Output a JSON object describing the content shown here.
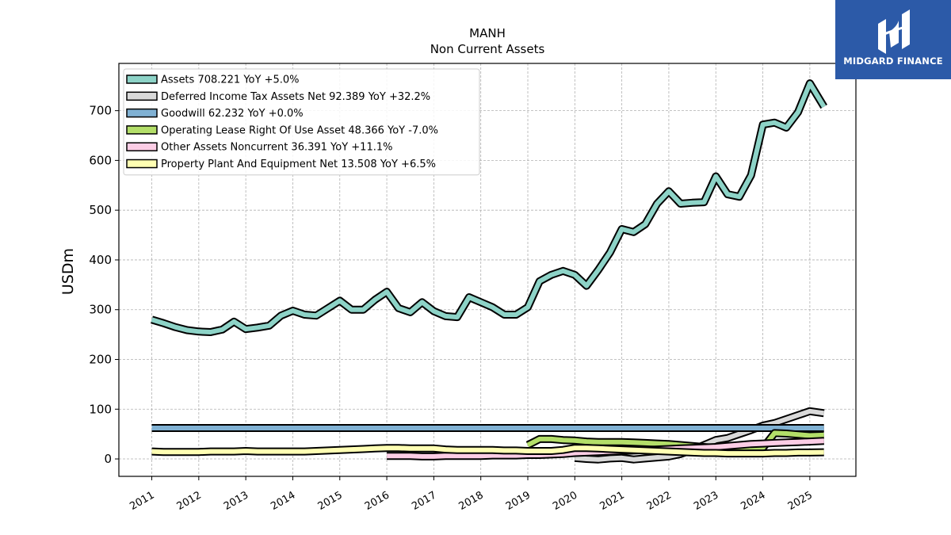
{
  "chart_data": {
    "type": "line",
    "title": "MANH",
    "subtitle": "Non Current  Assets",
    "ylabel": "USDm",
    "xlabel": "",
    "ylim": [
      -35,
      795
    ],
    "xlim": [
      2010.3,
      2025.98
    ],
    "yticks": [
      0,
      100,
      200,
      300,
      400,
      500,
      600,
      700
    ],
    "xticks": [
      "2011",
      "2012",
      "2013",
      "2014",
      "2015",
      "2016",
      "2017",
      "2018",
      "2019",
      "2020",
      "2021",
      "2022",
      "2023",
      "2024",
      "2025"
    ],
    "grid": true,
    "legend_position": "top-left",
    "series": [
      {
        "name": "Assets  708.221 YoY +5.0%",
        "color": "#8dd3c7",
        "x": [
          2011.0,
          2011.25,
          2011.5,
          2011.75,
          2012.0,
          2012.25,
          2012.5,
          2012.75,
          2013.0,
          2013.25,
          2013.5,
          2013.75,
          2014.0,
          2014.25,
          2014.5,
          2014.75,
          2015.0,
          2015.25,
          2015.5,
          2015.75,
          2016.0,
          2016.25,
          2016.5,
          2016.75,
          2017.0,
          2017.25,
          2017.5,
          2017.75,
          2018.0,
          2018.25,
          2018.5,
          2018.75,
          2019.0,
          2019.25,
          2019.5,
          2019.75,
          2020.0,
          2020.25,
          2020.5,
          2020.75,
          2021.0,
          2021.25,
          2021.5,
          2021.75,
          2022.0,
          2022.25,
          2022.5,
          2022.75,
          2023.0,
          2023.25,
          2023.5,
          2023.75,
          2024.0,
          2024.25,
          2024.5,
          2024.75,
          2025.0,
          2025.3
        ],
        "values": [
          280,
          273,
          265,
          259,
          256,
          255,
          260,
          276,
          261,
          264,
          268,
          288,
          298,
          290,
          288,
          303,
          318,
          300,
          300,
          320,
          336,
          303,
          295,
          315,
          297,
          287,
          285,
          325,
          315,
          305,
          290,
          290,
          305,
          357,
          370,
          378,
          370,
          348,
          380,
          415,
          462,
          456,
          472,
          513,
          538,
          513,
          515,
          516,
          568,
          532,
          527,
          570,
          672,
          676,
          666,
          697,
          755,
          708
        ]
      },
      {
        "name": "Deferred Income Tax Assets Net  92.389 YoY +32.2%",
        "color": "#d9d9d9",
        "x": [
          2020.0,
          2020.25,
          2020.5,
          2020.75,
          2021.0,
          2021.25,
          2021.5,
          2021.75,
          2022.0,
          2022.25,
          2022.5,
          2022.75,
          2023.0,
          2023.25,
          2023.5,
          2023.75,
          2024.0,
          2024.25,
          2024.5,
          2024.75,
          2025.0,
          2025.3
        ],
        "values": [
          2,
          0,
          -1,
          1,
          2,
          -1,
          1,
          3,
          5,
          10,
          18,
          28,
          38,
          42,
          50,
          58,
          67,
          72,
          80,
          88,
          96,
          92
        ]
      },
      {
        "name": "Goodwill  62.232 YoY +0.0%",
        "color": "#80b1d3",
        "x": [
          2011.0,
          2025.3
        ],
        "values": [
          62.2,
          62.2
        ]
      },
      {
        "name": "Operating Lease Right Of Use Asset  48.366 YoY -7.0%",
        "color": "#b3de69",
        "x": [
          2019.0,
          2019.25,
          2019.5,
          2019.75,
          2020.0,
          2020.25,
          2020.5,
          2020.75,
          2021.0,
          2021.25,
          2021.5,
          2021.75,
          2022.0,
          2022.25,
          2022.5,
          2022.75,
          2023.0,
          2023.25,
          2023.5,
          2023.75,
          2024.0,
          2024.25,
          2024.5,
          2024.75,
          2025.0,
          2025.3
        ],
        "values": [
          28,
          40,
          40,
          38,
          37,
          35,
          34,
          34,
          34,
          33,
          32,
          31,
          30,
          28,
          26,
          24,
          22,
          21,
          20,
          20,
          22,
          52,
          51,
          49,
          47,
          48
        ]
      },
      {
        "name": "Other Assets Noncurrent  36.391 YoY +11.1%",
        "color": "#fccde5",
        "x": [
          2016.0,
          2016.25,
          2016.5,
          2016.75,
          2017.0,
          2017.25,
          2017.5,
          2017.75,
          2018.0,
          2018.25,
          2018.5,
          2018.75,
          2019.0,
          2019.25,
          2019.5,
          2019.75,
          2020.0,
          2020.25,
          2020.5,
          2020.75,
          2021.0,
          2021.25,
          2021.5,
          2021.75,
          2022.0,
          2022.25,
          2022.5,
          2022.75,
          2023.0,
          2023.25,
          2023.5,
          2023.75,
          2024.0,
          2024.25,
          2024.5,
          2024.75,
          2025.0,
          2025.3
        ],
        "values": [
          6,
          6,
          6,
          5,
          5,
          6,
          6,
          6,
          6,
          7,
          7,
          7,
          8,
          8,
          9,
          10,
          12,
          13,
          14,
          15,
          16,
          17,
          18,
          19,
          20,
          21,
          22,
          23,
          24,
          26,
          28,
          30,
          31,
          32,
          33,
          34,
          35,
          36.4
        ]
      },
      {
        "name": "Property Plant And Equipment Net  13.508 YoY +6.5%",
        "color": "#ffffb3",
        "x": [
          2011.0,
          2011.25,
          2011.5,
          2011.75,
          2012.0,
          2012.25,
          2012.5,
          2012.75,
          2013.0,
          2013.25,
          2013.5,
          2013.75,
          2014.0,
          2014.25,
          2014.5,
          2014.75,
          2015.0,
          2015.25,
          2015.5,
          2015.75,
          2016.0,
          2016.25,
          2016.5,
          2016.75,
          2017.0,
          2017.25,
          2017.5,
          2017.75,
          2018.0,
          2018.25,
          2018.5,
          2018.75,
          2019.0,
          2019.25,
          2019.5,
          2019.75,
          2020.0,
          2020.25,
          2020.5,
          2020.75,
          2021.0,
          2021.25,
          2021.5,
          2021.75,
          2022.0,
          2022.25,
          2022.5,
          2022.75,
          2023.0,
          2023.25,
          2023.5,
          2023.75,
          2024.0,
          2024.25,
          2024.5,
          2024.75,
          2025.0,
          2025.3
        ],
        "values": [
          15,
          14,
          14,
          14,
          14,
          15,
          15,
          15,
          16,
          15,
          15,
          15,
          15,
          15,
          16,
          17,
          18,
          19,
          20,
          21,
          22,
          22,
          21,
          21,
          21,
          19,
          18,
          18,
          18,
          18,
          17,
          17,
          16,
          16,
          16,
          18,
          22,
          22,
          21,
          20,
          19,
          18,
          17,
          16,
          15,
          14,
          13,
          12,
          12,
          11,
          11,
          11,
          11,
          12,
          12,
          13,
          13,
          13.5
        ]
      }
    ]
  },
  "brand": {
    "name": "MIDGARD FINANCE",
    "color": "#2c5aa8"
  }
}
